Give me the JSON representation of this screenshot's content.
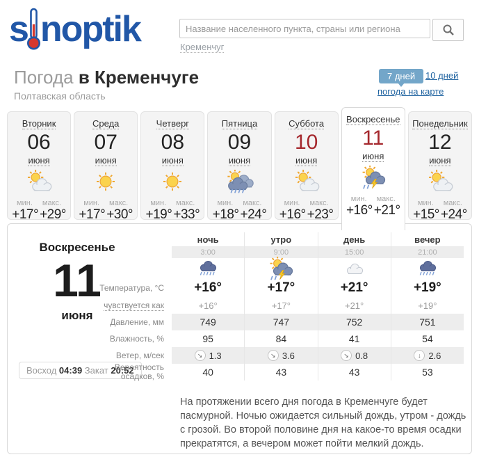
{
  "logo": {
    "part1": "s",
    "part2": "noptik"
  },
  "search": {
    "placeholder": "Название населенного пункта, страны или региона",
    "quick_link": "Кременчуг"
  },
  "page_header": {
    "title_light": "Погода",
    "title_bold": "в Кременчуге",
    "region": "Полтавская область",
    "tab_7_days": "7 дней",
    "tab_10_days": "10 дней",
    "map_link": "погода на карте"
  },
  "labels": {
    "min": "мин.",
    "max": "макс."
  },
  "days": [
    {
      "name": "Вторник",
      "date": "06",
      "month": "июня",
      "icon": "sun-cloud",
      "min": "+17°",
      "max": "+29°"
    },
    {
      "name": "Среда",
      "date": "07",
      "month": "июня",
      "icon": "sun",
      "min": "+17°",
      "max": "+30°"
    },
    {
      "name": "Четверг",
      "date": "08",
      "month": "июня",
      "icon": "sun",
      "min": "+19°",
      "max": "+33°"
    },
    {
      "name": "Пятница",
      "date": "09",
      "month": "июня",
      "icon": "sun-rain",
      "min": "+18°",
      "max": "+24°"
    },
    {
      "name": "Суббота",
      "date": "10",
      "month": "июня",
      "icon": "sun-cloud",
      "min": "+16°",
      "max": "+23°"
    },
    {
      "name": "Воскресенье",
      "date": "11",
      "month": "июня",
      "icon": "sun-storm",
      "min": "+16°",
      "max": "+21°"
    },
    {
      "name": "Понедельник",
      "date": "12",
      "month": "июня",
      "icon": "sun-cloud",
      "min": "+15°",
      "max": "+24°"
    }
  ],
  "detail": {
    "day_name": "Воскресенье",
    "date": "11",
    "month": "июня",
    "sunrise_label": "Восход",
    "sunrise_time": "04:39",
    "sunset_label": "Закат",
    "sunset_time": "20:52",
    "parts": [
      {
        "label": "ночь",
        "time": "3:00",
        "icon": "rain"
      },
      {
        "label": "утро",
        "time": "9:00",
        "icon": "sun-storm"
      },
      {
        "label": "день",
        "time": "15:00",
        "icon": "cloud"
      },
      {
        "label": "вечер",
        "time": "21:00",
        "icon": "rain"
      }
    ],
    "temperature": {
      "label": "Температура, °C",
      "values": [
        "+16°",
        "+17°",
        "+21°",
        "+19°"
      ]
    },
    "feels_like": {
      "label": "чувствуется как",
      "values": [
        "+16°",
        "+17°",
        "+21°",
        "+19°"
      ]
    },
    "pressure": {
      "label": "Давление, мм",
      "values": [
        "749",
        "747",
        "752",
        "751"
      ]
    },
    "humidity": {
      "label": "Влажность, %",
      "values": [
        "95",
        "84",
        "41",
        "54"
      ]
    },
    "wind": {
      "label": "Ветер, м/сек",
      "values": [
        "1.3",
        "3.6",
        "0.8",
        "2.6"
      ],
      "directions": [
        "se",
        "se",
        "se",
        "s"
      ]
    },
    "precipitation": {
      "label": "Вероятность осадков, %",
      "values": [
        "40",
        "43",
        "43",
        "53"
      ]
    },
    "description": "На протяжении всего дня погода в Кременчуге будет пасмурной. Ночью ожидается сильный дождь, утром - дождь с грозой. Во второй половине дня на какое-то время осадки прекратятся, а вечером может пойти мелкий дождь."
  }
}
